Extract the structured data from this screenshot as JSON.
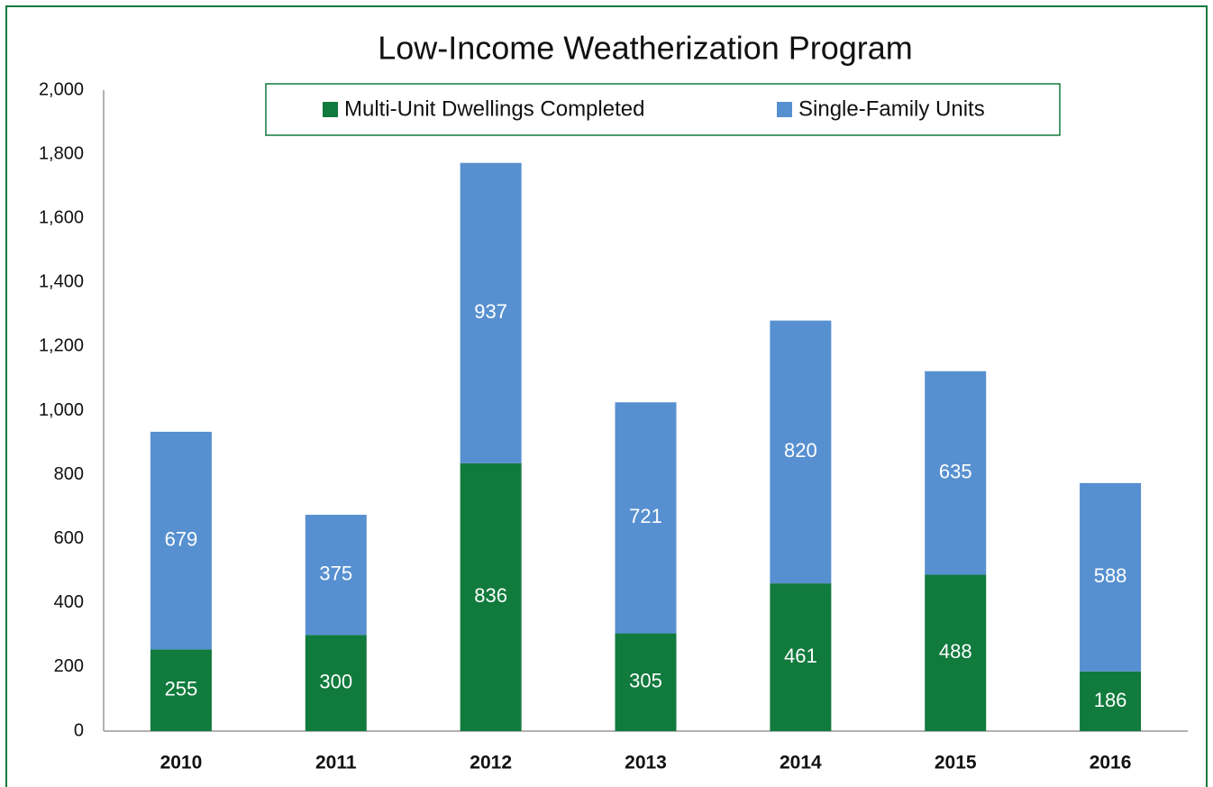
{
  "chart_data": {
    "type": "stacked_bar",
    "title": "Low-Income Weatherization Program",
    "categories": [
      "2010",
      "2011",
      "2012",
      "2013",
      "2014",
      "2015",
      "2016"
    ],
    "series": [
      {
        "name": "Multi-Unit Dwellings Completed",
        "color": "#117a3d",
        "values": [
          255,
          300,
          836,
          305,
          461,
          488,
          186
        ]
      },
      {
        "name": "Single-Family Units",
        "color": "#5790d0",
        "values": [
          679,
          375,
          937,
          721,
          820,
          635,
          588
        ]
      }
    ],
    "ylim": [
      0,
      2000
    ],
    "yticks": [
      0,
      200,
      400,
      600,
      800,
      {
        "value": 1000,
        "label": "1,000"
      },
      {
        "value": 1200,
        "label": "1,200"
      },
      {
        "value": 1400,
        "label": "1,400"
      },
      {
        "value": 1600,
        "label": "1,600"
      },
      {
        "value": 1800,
        "label": "1,800"
      },
      {
        "value": 2000,
        "label": "2,000"
      }
    ],
    "grid": false,
    "legend": "top"
  }
}
